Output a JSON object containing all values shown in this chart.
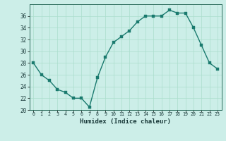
{
  "x": [
    0,
    1,
    2,
    3,
    4,
    5,
    6,
    7,
    8,
    9,
    10,
    11,
    12,
    13,
    14,
    15,
    16,
    17,
    18,
    19,
    20,
    21,
    22,
    23
  ],
  "y": [
    28,
    26,
    25,
    23.5,
    23,
    22,
    22,
    20.5,
    25.5,
    29,
    31.5,
    32.5,
    33.5,
    35,
    36,
    36,
    36,
    37,
    36.5,
    36.5,
    34,
    31,
    28,
    27
  ],
  "line_color": "#1a7a6e",
  "marker_color": "#1a7a6e",
  "bg_color": "#cceee8",
  "grid_major_color": "#aaddcc",
  "xlabel": "Humidex (Indice chaleur)",
  "xlim": [
    -0.5,
    23.5
  ],
  "ylim": [
    20,
    38
  ],
  "yticks": [
    20,
    22,
    24,
    26,
    28,
    30,
    32,
    34,
    36
  ],
  "xticks": [
    0,
    1,
    2,
    3,
    4,
    5,
    6,
    7,
    8,
    9,
    10,
    11,
    12,
    13,
    14,
    15,
    16,
    17,
    18,
    19,
    20,
    21,
    22,
    23
  ],
  "xlabel_fontsize": 6.5,
  "tick_fontsize": 5.5,
  "line_width": 1.0,
  "marker_size": 2.5
}
